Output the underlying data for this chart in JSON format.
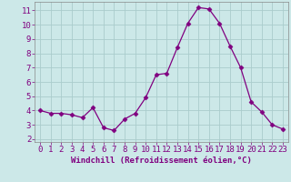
{
  "x": [
    0,
    1,
    2,
    3,
    4,
    5,
    6,
    7,
    8,
    9,
    10,
    11,
    12,
    13,
    14,
    15,
    16,
    17,
    18,
    19,
    20,
    21,
    22,
    23
  ],
  "y": [
    4.0,
    3.8,
    3.8,
    3.7,
    3.5,
    4.2,
    2.8,
    2.6,
    3.4,
    3.8,
    4.9,
    6.5,
    6.6,
    8.4,
    10.1,
    11.2,
    11.1,
    10.1,
    8.5,
    7.0,
    4.6,
    3.9,
    3.0,
    2.7
  ],
  "line_color": "#800080",
  "marker": "D",
  "marker_size": 2.5,
  "bg_color": "#cce8e8",
  "grid_color": "#aacccc",
  "xlabel": "Windchill (Refroidissement éolien,°C)",
  "xlim": [
    -0.5,
    23.5
  ],
  "ylim": [
    1.8,
    11.6
  ],
  "xticks": [
    0,
    1,
    2,
    3,
    4,
    5,
    6,
    7,
    8,
    9,
    10,
    11,
    12,
    13,
    14,
    15,
    16,
    17,
    18,
    19,
    20,
    21,
    22,
    23
  ],
  "yticks": [
    2,
    3,
    4,
    5,
    6,
    7,
    8,
    9,
    10,
    11
  ],
  "font_size": 6.5,
  "label_font_size": 6.5
}
